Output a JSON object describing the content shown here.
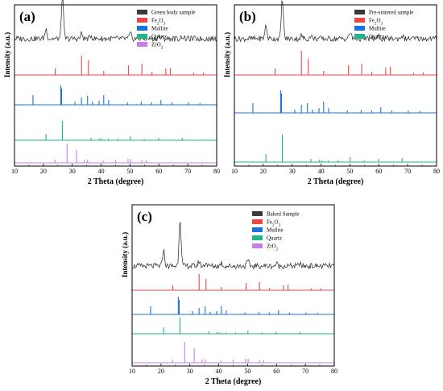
{
  "colors": {
    "sample": "#3a3a3a",
    "fe2o3": "#ef4444",
    "mullite": "#1a73d9",
    "quartz": "#1fb589",
    "zro2": "#c47ee8"
  },
  "chart_data": [
    {
      "type": "line",
      "panel_label": "(a)",
      "xlabel": "2 Theta (degree)",
      "ylabel": "Intensity (a.u.)",
      "xlim": [
        10,
        80
      ],
      "xticks": [
        10,
        20,
        30,
        40,
        50,
        60,
        70,
        80
      ],
      "legend": {
        "position": "top-right",
        "entries": [
          "Green body sample",
          "Fe2O3",
          "Mullite",
          "Quartz",
          "ZrO2"
        ]
      },
      "series": [
        {
          "name": "Green body sample",
          "kind": "pattern",
          "color": "#3a3a3a",
          "baseline": 0.79,
          "peaks": [
            [
              20.9,
              0.06
            ],
            [
              26.6,
              0.27
            ],
            [
              33.2,
              0.03
            ],
            [
              36.5,
              0.02
            ],
            [
              50.1,
              0.03
            ],
            [
              60.0,
              0.015
            ],
            [
              68.0,
              0.015
            ]
          ]
        },
        {
          "name": "Fe2O3",
          "kind": "sticks",
          "color": "#ef4444",
          "baseline": 0.565,
          "peaks": [
            [
              24.1,
              0.04
            ],
            [
              33.2,
              0.12
            ],
            [
              35.6,
              0.09
            ],
            [
              40.9,
              0.025
            ],
            [
              49.5,
              0.06
            ],
            [
              54.1,
              0.07
            ],
            [
              57.6,
              0.02
            ],
            [
              62.4,
              0.04
            ],
            [
              64.0,
              0.045
            ],
            [
              72.0,
              0.015
            ],
            [
              75.4,
              0.015
            ]
          ]
        },
        {
          "name": "Mullite",
          "kind": "sticks",
          "color": "#1a73d9",
          "baseline": 0.38,
          "peaks": [
            [
              16.4,
              0.06
            ],
            [
              26.0,
              0.12
            ],
            [
              26.3,
              0.1
            ],
            [
              30.9,
              0.02
            ],
            [
              33.2,
              0.045
            ],
            [
              35.3,
              0.055
            ],
            [
              37.0,
              0.02
            ],
            [
              39.3,
              0.025
            ],
            [
              40.9,
              0.06
            ],
            [
              42.6,
              0.03
            ],
            [
              49.1,
              0.015
            ],
            [
              53.9,
              0.02
            ],
            [
              57.5,
              0.015
            ],
            [
              60.7,
              0.03
            ],
            [
              64.5,
              0.015
            ],
            [
              70.2,
              0.015
            ],
            [
              74.2,
              0.012
            ]
          ]
        },
        {
          "name": "Quartz",
          "kind": "sticks",
          "color": "#1fb589",
          "baseline": 0.16,
          "peaks": [
            [
              20.9,
              0.04
            ],
            [
              26.6,
              0.12
            ],
            [
              36.5,
              0.015
            ],
            [
              39.5,
              0.012
            ],
            [
              40.3,
              0.01
            ],
            [
              42.5,
              0.01
            ],
            [
              45.8,
              0.01
            ],
            [
              50.1,
              0.025
            ],
            [
              54.9,
              0.01
            ],
            [
              59.9,
              0.015
            ],
            [
              68.1,
              0.015
            ]
          ]
        },
        {
          "name": "ZrO2",
          "kind": "sticks",
          "color": "#c47ee8",
          "baseline": 0.02,
          "peaks": [
            [
              24.0,
              0.02
            ],
            [
              28.2,
              0.12
            ],
            [
              31.5,
              0.08
            ],
            [
              34.2,
              0.02
            ],
            [
              35.3,
              0.02
            ],
            [
              40.7,
              0.015
            ],
            [
              45.0,
              0.02
            ],
            [
              49.3,
              0.025
            ],
            [
              50.2,
              0.025
            ],
            [
              54.1,
              0.015
            ],
            [
              55.6,
              0.015
            ]
          ]
        }
      ]
    },
    {
      "type": "line",
      "panel_label": "(b)",
      "xlabel": "2 Theta (degree)",
      "ylabel": "Intensity (a.u.)",
      "xlim": [
        10,
        80
      ],
      "xticks": [
        10,
        20,
        30,
        40,
        50,
        60,
        70,
        80
      ],
      "legend": {
        "position": "top-right",
        "entries": [
          "Pre-sintered sample",
          "Fe2O3",
          "Mullite",
          "Quartz"
        ]
      },
      "series": [
        {
          "name": "Pre-sintered sample",
          "kind": "pattern",
          "color": "#3a3a3a",
          "baseline": 0.79,
          "peaks": [
            [
              20.9,
              0.08
            ],
            [
              26.6,
              0.25
            ],
            [
              33.2,
              0.02
            ],
            [
              36.5,
              0.02
            ],
            [
              50.1,
              0.04
            ],
            [
              60.0,
              0.015
            ],
            [
              68.0,
              0.02
            ]
          ]
        },
        {
          "name": "Fe2O3",
          "kind": "sticks",
          "color": "#ef4444",
          "baseline": 0.565,
          "peaks": [
            [
              24.1,
              0.04
            ],
            [
              33.2,
              0.15
            ],
            [
              35.6,
              0.1
            ],
            [
              40.9,
              0.025
            ],
            [
              49.5,
              0.06
            ],
            [
              54.1,
              0.07
            ],
            [
              57.6,
              0.02
            ],
            [
              62.4,
              0.045
            ],
            [
              64.0,
              0.05
            ],
            [
              72.0,
              0.015
            ],
            [
              75.4,
              0.015
            ]
          ]
        },
        {
          "name": "Mullite",
          "kind": "sticks",
          "color": "#1a73d9",
          "baseline": 0.33,
          "peaks": [
            [
              16.4,
              0.06
            ],
            [
              26.0,
              0.14
            ],
            [
              26.3,
              0.12
            ],
            [
              30.9,
              0.02
            ],
            [
              33.2,
              0.05
            ],
            [
              35.3,
              0.06
            ],
            [
              37.0,
              0.02
            ],
            [
              39.3,
              0.03
            ],
            [
              40.9,
              0.07
            ],
            [
              42.6,
              0.03
            ],
            [
              49.1,
              0.015
            ],
            [
              53.9,
              0.02
            ],
            [
              57.5,
              0.015
            ],
            [
              60.7,
              0.035
            ],
            [
              64.5,
              0.015
            ],
            [
              70.2,
              0.015
            ],
            [
              74.2,
              0.012
            ]
          ]
        },
        {
          "name": "Quartz",
          "kind": "sticks",
          "color": "#1fb589",
          "baseline": 0.025,
          "peaks": [
            [
              20.9,
              0.05
            ],
            [
              26.6,
              0.17
            ],
            [
              36.5,
              0.02
            ],
            [
              39.5,
              0.015
            ],
            [
              40.3,
              0.01
            ],
            [
              42.5,
              0.01
            ],
            [
              45.8,
              0.01
            ],
            [
              50.1,
              0.03
            ],
            [
              54.9,
              0.01
            ],
            [
              59.9,
              0.02
            ],
            [
              68.1,
              0.025
            ]
          ]
        }
      ]
    },
    {
      "type": "line",
      "panel_label": "(c)",
      "xlabel": "2 Theta (degree)",
      "ylabel": "Intensity (a.u.)",
      "xlim": [
        10,
        80
      ],
      "xticks": [
        10,
        20,
        30,
        40,
        50,
        60,
        70,
        80
      ],
      "legend": {
        "position": "top-right",
        "entries": [
          "Baked Sample",
          "Fe2O3",
          "Mullite",
          "Quartz",
          "ZrO2"
        ]
      },
      "series": [
        {
          "name": "Baked Sample",
          "kind": "pattern",
          "color": "#3a3a3a",
          "baseline": 0.62,
          "peaks": [
            [
              20.9,
              0.1
            ],
            [
              26.6,
              0.3
            ],
            [
              33.2,
              0.03
            ],
            [
              35.6,
              0.02
            ],
            [
              40.9,
              0.02
            ],
            [
              50.1,
              0.03
            ],
            [
              60.0,
              0.015
            ],
            [
              68.0,
              0.015
            ]
          ]
        },
        {
          "name": "Fe2O3",
          "kind": "sticks",
          "color": "#ef4444",
          "baseline": 0.47,
          "peaks": [
            [
              24.1,
              0.03
            ],
            [
              33.2,
              0.1
            ],
            [
              35.6,
              0.07
            ],
            [
              40.9,
              0.02
            ],
            [
              49.5,
              0.045
            ],
            [
              54.1,
              0.05
            ],
            [
              57.6,
              0.015
            ],
            [
              62.4,
              0.03
            ],
            [
              64.0,
              0.035
            ],
            [
              72.0,
              0.012
            ],
            [
              75.4,
              0.012
            ]
          ]
        },
        {
          "name": "Mullite",
          "kind": "sticks",
          "color": "#1a73d9",
          "baseline": 0.32,
          "peaks": [
            [
              16.4,
              0.05
            ],
            [
              26.0,
              0.11
            ],
            [
              26.3,
              0.09
            ],
            [
              30.9,
              0.02
            ],
            [
              33.2,
              0.04
            ],
            [
              35.3,
              0.05
            ],
            [
              37.0,
              0.015
            ],
            [
              39.3,
              0.02
            ],
            [
              40.9,
              0.05
            ],
            [
              42.6,
              0.025
            ],
            [
              49.1,
              0.012
            ],
            [
              53.9,
              0.015
            ],
            [
              57.5,
              0.012
            ],
            [
              60.7,
              0.025
            ],
            [
              64.5,
              0.012
            ],
            [
              70.2,
              0.012
            ],
            [
              74.2,
              0.01
            ]
          ]
        },
        {
          "name": "Quartz",
          "kind": "sticks",
          "color": "#1fb589",
          "baseline": 0.2,
          "peaks": [
            [
              20.9,
              0.04
            ],
            [
              26.6,
              0.1
            ],
            [
              36.5,
              0.015
            ],
            [
              39.5,
              0.01
            ],
            [
              40.3,
              0.008
            ],
            [
              42.5,
              0.008
            ],
            [
              45.8,
              0.008
            ],
            [
              50.1,
              0.02
            ],
            [
              54.9,
              0.008
            ],
            [
              59.9,
              0.012
            ],
            [
              68.1,
              0.012
            ]
          ]
        },
        {
          "name": "ZrO2",
          "kind": "sticks",
          "color": "#c47ee8",
          "baseline": 0.02,
          "peaks": [
            [
              24.0,
              0.02
            ],
            [
              28.2,
              0.13
            ],
            [
              31.5,
              0.09
            ],
            [
              34.2,
              0.02
            ],
            [
              35.3,
              0.02
            ],
            [
              40.7,
              0.015
            ],
            [
              45.0,
              0.02
            ],
            [
              49.3,
              0.025
            ],
            [
              50.2,
              0.025
            ],
            [
              54.1,
              0.015
            ],
            [
              55.6,
              0.015
            ]
          ]
        }
      ]
    }
  ]
}
